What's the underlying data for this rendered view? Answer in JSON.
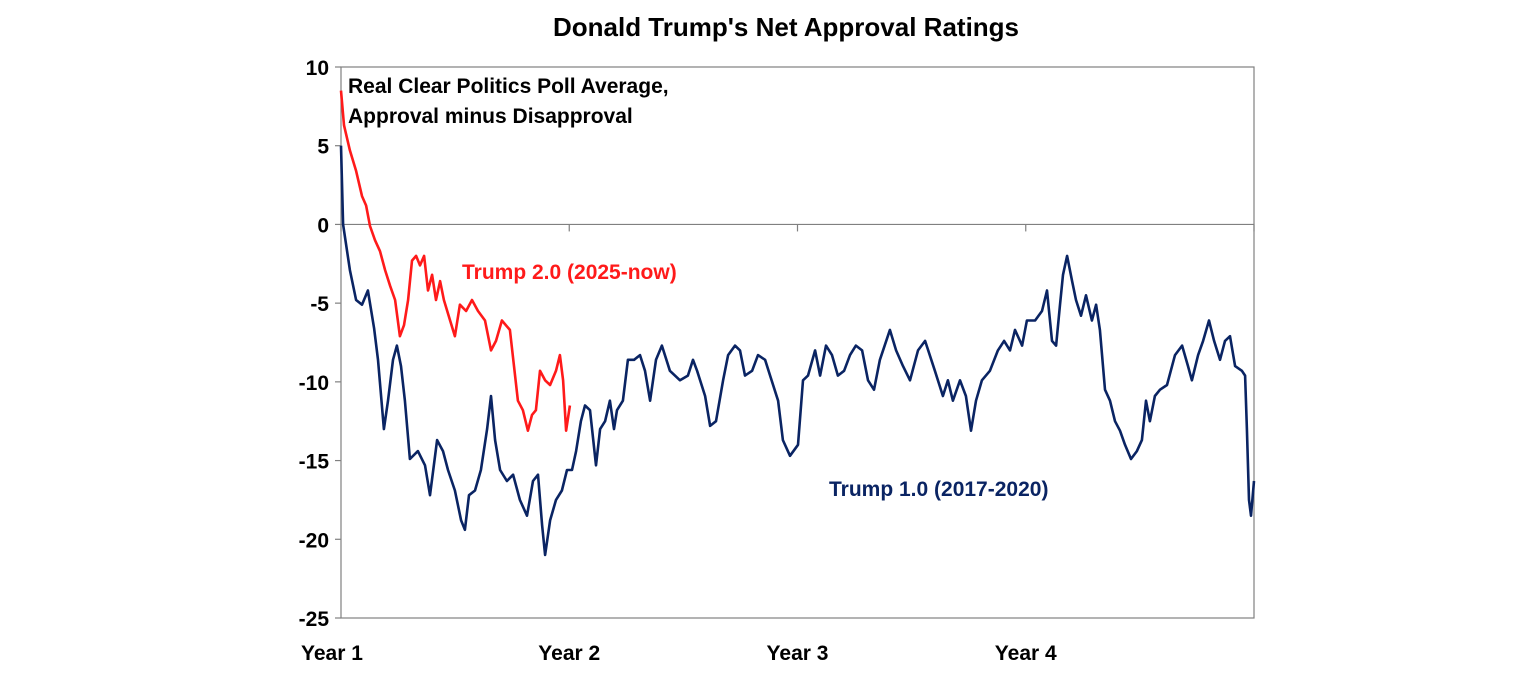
{
  "chart_data": {
    "type": "line",
    "title": "Donald Trump's Net Approval Ratings",
    "annotation": [
      "Real Clear Politics Poll Average,",
      "Approval minus Disapproval"
    ],
    "xlabel": "",
    "ylabel": "",
    "ylim": [
      -25,
      10
    ],
    "yticks": [
      10,
      5,
      0,
      -5,
      -10,
      -15,
      -20,
      -25
    ],
    "xlim": [
      1,
      5
    ],
    "xticks": [
      {
        "value": 1,
        "label": "Year 1"
      },
      {
        "value": 2,
        "label": "Year 2"
      },
      {
        "value": 3,
        "label": "Year 3"
      },
      {
        "value": 4,
        "label": "Year 4"
      }
    ],
    "grid": false,
    "zero_line": true,
    "series": [
      {
        "name": "Trump 1.0 (2017-2020)",
        "color": "#0a2463",
        "x": [
          1.0,
          1.009,
          1.039,
          1.066,
          1.092,
          1.118,
          1.145,
          1.162,
          1.188,
          1.206,
          1.228,
          1.245,
          1.263,
          1.28,
          1.302,
          1.337,
          1.368,
          1.39,
          1.421,
          1.447,
          1.469,
          1.499,
          1.526,
          1.543,
          1.561,
          1.587,
          1.613,
          1.64,
          1.657,
          1.675,
          1.697,
          1.727,
          1.754,
          1.784,
          1.815,
          1.841,
          1.863,
          1.881,
          1.894,
          1.916,
          1.942,
          1.968,
          1.99,
          2.012,
          2.03,
          2.051,
          2.069,
          2.091,
          2.117,
          2.135,
          2.157,
          2.178,
          2.196,
          2.209,
          2.235,
          2.257,
          2.284,
          2.31,
          2.332,
          2.354,
          2.38,
          2.406,
          2.441,
          2.485,
          2.52,
          2.542,
          2.56,
          2.595,
          2.617,
          2.643,
          2.674,
          2.696,
          2.726,
          2.748,
          2.77,
          2.801,
          2.827,
          2.858,
          2.88,
          2.915,
          2.936,
          2.967,
          3.002,
          3.024,
          3.046,
          3.077,
          3.099,
          3.125,
          3.151,
          3.177,
          3.204,
          3.23,
          3.256,
          3.283,
          3.309,
          3.335,
          3.361,
          3.405,
          3.432,
          3.462,
          3.493,
          3.528,
          3.559,
          3.602,
          3.637,
          3.659,
          3.681,
          3.712,
          3.738,
          3.76,
          3.782,
          3.808,
          3.843,
          3.878,
          3.905,
          3.931,
          3.953,
          3.984,
          4.005,
          4.041,
          4.071,
          4.093,
          4.115,
          4.133,
          4.15,
          4.163,
          4.181,
          4.203,
          4.22,
          4.242,
          4.264,
          4.29,
          4.308,
          4.325,
          4.347,
          4.369,
          4.391,
          4.413,
          4.435,
          4.461,
          4.487,
          4.509,
          4.527,
          4.544,
          4.566,
          4.588,
          4.619,
          4.654,
          4.685,
          4.711,
          4.728,
          4.755,
          4.777,
          4.803,
          4.825,
          4.851,
          4.873,
          4.895,
          4.917,
          4.947,
          4.961,
          4.969,
          4.978,
          4.987,
          5.0
        ],
        "y": [
          5.0,
          0.0,
          -2.9,
          -4.8,
          -5.1,
          -4.2,
          -6.6,
          -8.6,
          -13.0,
          -11.2,
          -8.6,
          -7.7,
          -9.0,
          -11.2,
          -14.9,
          -14.4,
          -15.3,
          -17.2,
          -13.7,
          -14.4,
          -15.6,
          -16.9,
          -18.8,
          -19.4,
          -17.2,
          -16.9,
          -15.6,
          -13.0,
          -10.9,
          -13.7,
          -15.6,
          -16.3,
          -15.9,
          -17.5,
          -18.5,
          -16.3,
          -15.9,
          -19.1,
          -21.0,
          -18.8,
          -17.5,
          -16.9,
          -15.6,
          -15.6,
          -14.4,
          -12.5,
          -11.5,
          -11.8,
          -15.3,
          -13.0,
          -12.5,
          -11.2,
          -13.0,
          -11.8,
          -11.2,
          -8.6,
          -8.6,
          -8.3,
          -9.3,
          -11.2,
          -8.6,
          -7.7,
          -9.3,
          -9.9,
          -9.6,
          -8.6,
          -9.3,
          -10.9,
          -12.8,
          -12.5,
          -9.9,
          -8.3,
          -7.7,
          -8.0,
          -9.6,
          -9.3,
          -8.3,
          -8.6,
          -9.6,
          -11.2,
          -13.7,
          -14.7,
          -14.0,
          -9.9,
          -9.6,
          -8.0,
          -9.6,
          -7.7,
          -8.3,
          -9.6,
          -9.3,
          -8.3,
          -7.7,
          -8.0,
          -9.9,
          -10.5,
          -8.6,
          -6.7,
          -8.0,
          -9.0,
          -9.9,
          -8.0,
          -7.4,
          -9.3,
          -10.9,
          -9.9,
          -11.2,
          -9.9,
          -10.9,
          -13.1,
          -11.2,
          -9.9,
          -9.3,
          -8.0,
          -7.4,
          -8.0,
          -6.7,
          -7.7,
          -6.1,
          -6.1,
          -5.5,
          -4.2,
          -7.4,
          -7.7,
          -5.1,
          -3.2,
          -2.0,
          -3.6,
          -4.8,
          -5.8,
          -4.5,
          -6.1,
          -5.1,
          -6.7,
          -10.5,
          -11.2,
          -12.5,
          -13.1,
          -14.0,
          -14.9,
          -14.4,
          -13.7,
          -11.2,
          -12.5,
          -10.9,
          -10.5,
          -10.2,
          -8.3,
          -7.7,
          -9.0,
          -9.9,
          -8.3,
          -7.4,
          -6.1,
          -7.4,
          -8.6,
          -7.4,
          -7.1,
          -9.0,
          -9.3,
          -9.6,
          -13.0,
          -17.5,
          -18.5,
          -16.3
        ]
      },
      {
        "name": "Trump 2.0 (2025-now)",
        "color": "#ff1a1a",
        "x": [
          1.0,
          1.013,
          1.039,
          1.066,
          1.092,
          1.11,
          1.127,
          1.149,
          1.171,
          1.193,
          1.215,
          1.237,
          1.258,
          1.276,
          1.294,
          1.311,
          1.329,
          1.346,
          1.364,
          1.381,
          1.399,
          1.416,
          1.434,
          1.451,
          1.478,
          1.499,
          1.521,
          1.548,
          1.574,
          1.6,
          1.631,
          1.657,
          1.679,
          1.705,
          1.74,
          1.758,
          1.775,
          1.797,
          1.819,
          1.837,
          1.854,
          1.872,
          1.894,
          1.916,
          1.942,
          1.959,
          1.973,
          1.986,
          2.003
        ],
        "y": [
          8.5,
          6.3,
          4.7,
          3.4,
          1.8,
          1.2,
          -0.1,
          -1.0,
          -1.7,
          -2.9,
          -3.9,
          -4.8,
          -7.1,
          -6.4,
          -4.8,
          -2.3,
          -2.0,
          -2.6,
          -2.0,
          -4.2,
          -3.2,
          -4.8,
          -3.6,
          -4.8,
          -6.1,
          -7.1,
          -5.1,
          -5.5,
          -4.8,
          -5.5,
          -6.1,
          -8.0,
          -7.4,
          -6.1,
          -6.7,
          -9.0,
          -11.2,
          -11.8,
          -13.1,
          -12.1,
          -11.8,
          -9.3,
          -9.9,
          -10.2,
          -9.3,
          -8.3,
          -9.9,
          -13.1,
          -11.5
        ]
      }
    ]
  }
}
